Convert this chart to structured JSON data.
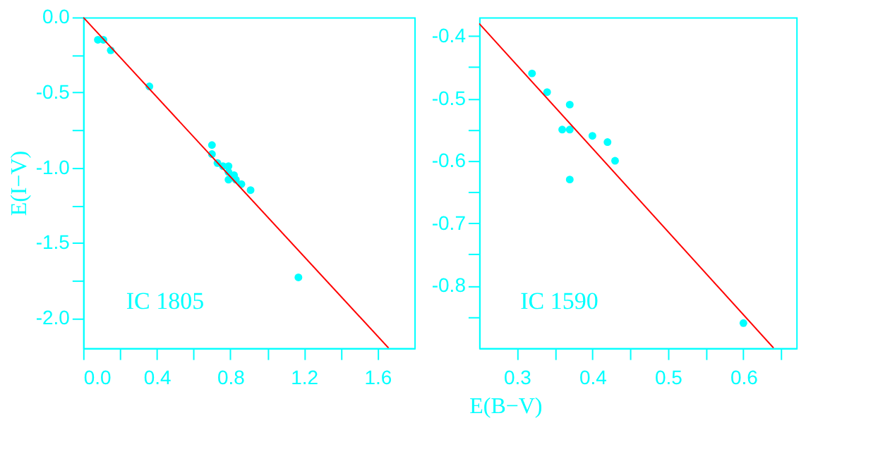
{
  "chart_data": [
    {
      "type": "scatter",
      "ylabel": "E(I−V)",
      "xlabel": "E(B−V)",
      "annotations": [
        "IC 1805"
      ],
      "marker": "circle",
      "grid": false,
      "xlim": [
        0,
        1.8
      ],
      "ylim": [
        -2.2,
        0
      ],
      "xticks": [
        {
          "value": 0,
          "label": "0.0"
        },
        {
          "value": 0.2,
          "label": null
        },
        0.4,
        {
          "value": 0.6,
          "label": null
        },
        0.8,
        {
          "value": 1.0,
          "label": null
        },
        1.2,
        {
          "value": 1.4,
          "label": null
        },
        1.6
      ],
      "yticks": [
        {
          "value": 0,
          "label": "0.0"
        },
        {
          "value": -0.25,
          "label": null
        },
        -0.5,
        {
          "value": -0.75,
          "label": null
        },
        {
          "value": -1,
          "label": "-1.0"
        },
        {
          "value": -1.25,
          "label": null
        },
        -1.5,
        {
          "value": -1.75,
          "label": null
        },
        {
          "value": -2,
          "label": "-2.0"
        }
      ],
      "series": [
        {
          "type": "scatter",
          "color": "#00ffff",
          "x": [
            0.08,
            0.11,
            0.15,
            0.36,
            0.7,
            0.7,
            0.73,
            0.76,
            0.79,
            0.79,
            0.82,
            0.79,
            0.83,
            0.86,
            0.91,
            1.17
          ],
          "values": [
            -0.15,
            -0.15,
            -0.22,
            -0.46,
            -0.85,
            -0.91,
            -0.97,
            -0.99,
            -0.99,
            -1.03,
            -1.05,
            -1.08,
            -1.08,
            -1.11,
            -1.15,
            -1.73
          ]
        },
        {
          "type": "line",
          "color": "#ff0000",
          "line_style": "solid",
          "marker": "none",
          "x": [
            0,
            1.66
          ],
          "values": [
            0,
            -2.2
          ]
        }
      ]
    },
    {
      "type": "scatter",
      "annotations": [
        "IC 1590"
      ],
      "marker": "circle",
      "grid": false,
      "xlim": [
        0.25,
        0.67
      ],
      "ylim": [
        -0.9,
        -0.37
      ],
      "xticks": [
        0.3,
        {
          "value": 0.35,
          "label": null
        },
        0.4,
        {
          "value": 0.45,
          "label": null
        },
        0.5,
        {
          "value": 0.55,
          "label": null
        },
        0.6,
        {
          "value": 0.65,
          "label": null
        }
      ],
      "yticks": [
        -0.4,
        {
          "value": -0.45,
          "label": null
        },
        -0.5,
        {
          "value": -0.55,
          "label": null
        },
        -0.6,
        {
          "value": -0.65,
          "label": null
        },
        -0.7,
        {
          "value": -0.75,
          "label": null
        },
        -0.8,
        {
          "value": -0.85,
          "label": null
        }
      ],
      "series": [
        {
          "type": "scatter",
          "color": "#00ffff",
          "x": [
            0.32,
            0.34,
            0.37,
            0.36,
            0.37,
            0.4,
            0.42,
            0.43,
            0.37,
            0.6
          ],
          "values": [
            -0.46,
            -0.49,
            -0.51,
            -0.55,
            -0.55,
            -0.56,
            -0.57,
            -0.6,
            -0.63,
            -0.86
          ]
        },
        {
          "type": "line",
          "color": "#ff0000",
          "line_style": "solid",
          "marker": "none",
          "x": [
            0.25,
            0.64
          ],
          "values": [
            -0.38,
            -0.9
          ]
        }
      ]
    }
  ]
}
